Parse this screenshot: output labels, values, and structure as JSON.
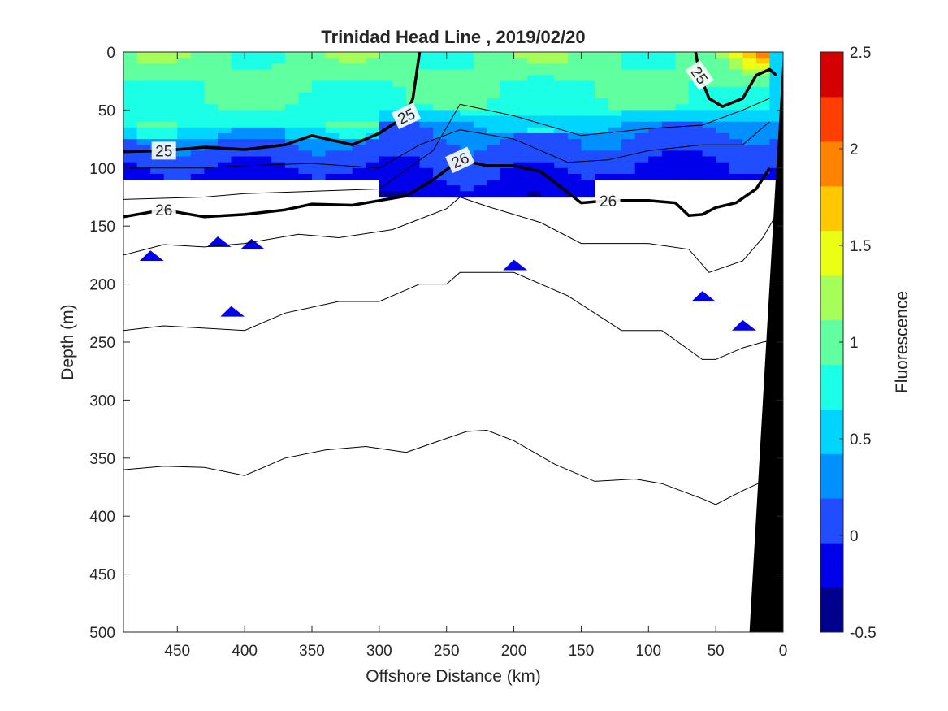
{
  "chart_data": {
    "type": "heatmap",
    "title": "Trinidad Head Line , 2019/02/20",
    "xlabel": "Offshore Distance (km)",
    "ylabel": "Depth (m)",
    "xlim": [
      490,
      0
    ],
    "ylim": [
      0,
      500
    ],
    "x_reversed": true,
    "y_reversed": true,
    "x_ticks": [
      "450",
      "400",
      "350",
      "300",
      "250",
      "200",
      "150",
      "100",
      "50",
      "0"
    ],
    "y_ticks": [
      "0",
      "50",
      "100",
      "150",
      "200",
      "250",
      "300",
      "350",
      "400",
      "450",
      "500"
    ],
    "colorbar": {
      "label": "Fluorescence",
      "range": [
        -0.5,
        2.5
      ],
      "ticks": [
        "-0.5",
        "0",
        "0.5",
        "1",
        "1.5",
        "2",
        "2.5"
      ],
      "colors": [
        "#00008f",
        "#0000ea",
        "#1f4dff",
        "#0090ff",
        "#00d5ff",
        "#1affe5",
        "#60ff9f",
        "#a6ff59",
        "#ebff14",
        "#ffc800",
        "#ff8300",
        "#ff3e00",
        "#d50000"
      ]
    },
    "fluorescence_layers": [
      {
        "name": "surface",
        "depth_m": [
          0,
          60
        ],
        "value_range": [
          0.5,
          1.0
        ]
      },
      {
        "name": "deep",
        "depth_m": [
          60,
          130
        ],
        "value_range": [
          -0.25,
          0.25
        ]
      },
      {
        "name": "coastal_max",
        "x_km": [
          0,
          60
        ],
        "depth_m": [
          0,
          25
        ],
        "value_range": [
          1.5,
          2.5
        ]
      }
    ],
    "labeled_contours": [
      {
        "label": "25",
        "points": [
          [
            490,
            86
          ],
          [
            460,
            85
          ],
          [
            430,
            82
          ],
          [
            400,
            84
          ],
          [
            370,
            80
          ],
          [
            350,
            72
          ],
          [
            320,
            80
          ],
          [
            300,
            70
          ],
          [
            280,
            55
          ],
          [
            275,
            40
          ],
          [
            270,
            0
          ]
        ]
      },
      {
        "label": "26",
        "points": [
          [
            490,
            142
          ],
          [
            460,
            136
          ],
          [
            430,
            142
          ],
          [
            400,
            140
          ],
          [
            370,
            136
          ],
          [
            350,
            131
          ],
          [
            320,
            132
          ],
          [
            300,
            128
          ],
          [
            280,
            124
          ],
          [
            260,
            110
          ],
          [
            240,
            93
          ],
          [
            220,
            98
          ],
          [
            200,
            98
          ],
          [
            180,
            103
          ],
          [
            150,
            130
          ],
          [
            130,
            128
          ],
          [
            100,
            128
          ],
          [
            80,
            130
          ],
          [
            70,
            141
          ],
          [
            60,
            140
          ],
          [
            50,
            134
          ],
          [
            35,
            130
          ],
          [
            20,
            118
          ],
          [
            10,
            100
          ]
        ]
      },
      {
        "label": "25",
        "points": [
          [
            65,
            0
          ],
          [
            62,
            20
          ],
          [
            55,
            40
          ],
          [
            45,
            47
          ],
          [
            30,
            40
          ],
          [
            20,
            20
          ],
          [
            10,
            15
          ],
          [
            5,
            20
          ]
        ]
      }
    ],
    "unlabeled_contours": [
      {
        "points": [
          [
            490,
            100
          ],
          [
            430,
            100
          ],
          [
            400,
            98
          ],
          [
            350,
            96
          ],
          [
            300,
            100
          ],
          [
            270,
            80
          ],
          [
            240,
            67
          ],
          [
            200,
            75
          ],
          [
            160,
            95
          ],
          [
            130,
            93
          ],
          [
            100,
            85
          ],
          [
            60,
            80
          ],
          [
            30,
            80
          ],
          [
            10,
            60
          ]
        ]
      },
      {
        "points": [
          [
            490,
            127
          ],
          [
            430,
            125
          ],
          [
            400,
            122
          ],
          [
            350,
            120
          ],
          [
            300,
            118
          ],
          [
            260,
            85
          ],
          [
            240,
            45
          ],
          [
            200,
            55
          ],
          [
            150,
            72
          ],
          [
            100,
            66
          ],
          [
            60,
            63
          ],
          [
            30,
            50
          ],
          [
            10,
            40
          ]
        ]
      },
      {
        "points": [
          [
            490,
            175
          ],
          [
            460,
            166
          ],
          [
            430,
            168
          ],
          [
            400,
            165
          ],
          [
            360,
            157
          ],
          [
            330,
            160
          ],
          [
            290,
            153
          ],
          [
            250,
            135
          ],
          [
            240,
            125
          ],
          [
            220,
            133
          ],
          [
            180,
            147
          ],
          [
            150,
            165
          ],
          [
            100,
            165
          ],
          [
            70,
            170
          ],
          [
            55,
            190
          ],
          [
            30,
            180
          ],
          [
            15,
            160
          ],
          [
            5,
            140
          ]
        ]
      },
      {
        "points": [
          [
            490,
            240
          ],
          [
            460,
            236
          ],
          [
            430,
            238
          ],
          [
            400,
            240
          ],
          [
            370,
            225
          ],
          [
            330,
            215
          ],
          [
            300,
            215
          ],
          [
            270,
            200
          ],
          [
            250,
            200
          ],
          [
            240,
            190
          ],
          [
            200,
            190
          ],
          [
            160,
            210
          ],
          [
            120,
            240
          ],
          [
            90,
            240
          ],
          [
            60,
            265
          ],
          [
            50,
            265
          ],
          [
            30,
            255
          ],
          [
            15,
            250
          ],
          [
            5,
            248
          ]
        ]
      },
      {
        "points": [
          [
            490,
            360
          ],
          [
            460,
            357
          ],
          [
            430,
            358
          ],
          [
            400,
            365
          ],
          [
            370,
            350
          ],
          [
            340,
            343
          ],
          [
            310,
            340
          ],
          [
            280,
            345
          ],
          [
            250,
            333
          ],
          [
            235,
            327
          ],
          [
            220,
            326
          ],
          [
            200,
            335
          ],
          [
            170,
            355
          ],
          [
            140,
            370
          ],
          [
            110,
            368
          ],
          [
            90,
            372
          ],
          [
            60,
            385
          ],
          [
            50,
            390
          ],
          [
            30,
            378
          ],
          [
            15,
            370
          ]
        ]
      }
    ],
    "bathymetry": {
      "points": [
        [
          0,
          0
        ],
        [
          25,
          500
        ],
        [
          0,
          500
        ]
      ]
    }
  }
}
